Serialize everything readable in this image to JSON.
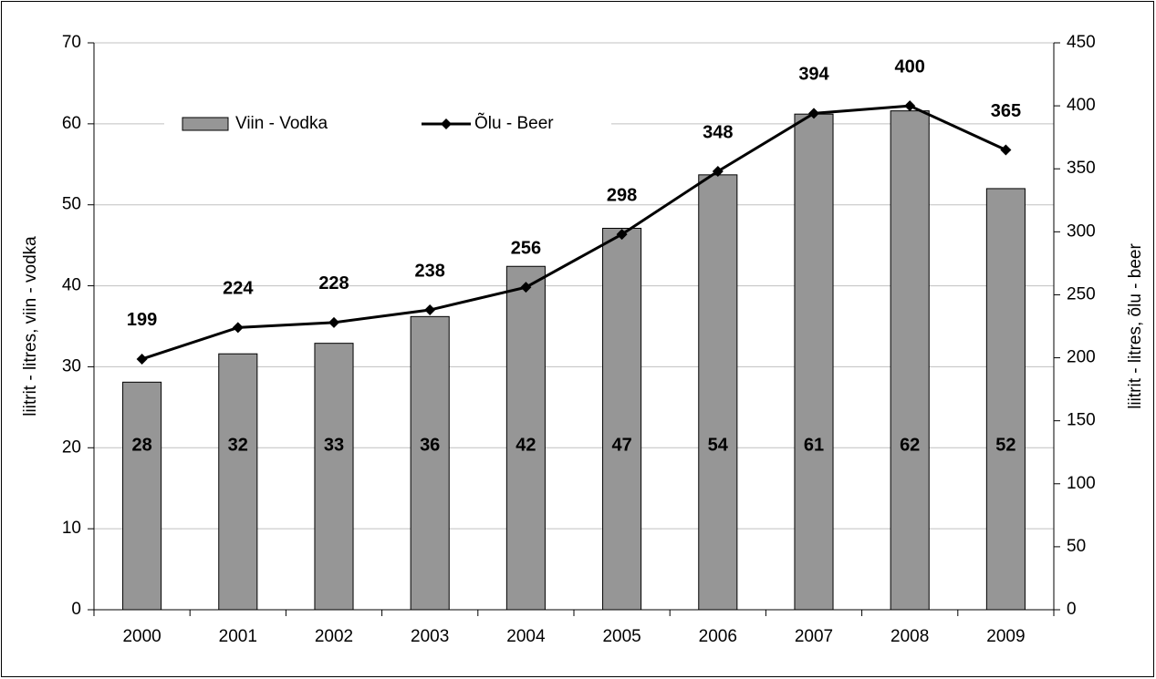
{
  "chart_data": {
    "type": "bar_line",
    "categories": [
      "2000",
      "2001",
      "2002",
      "2003",
      "2004",
      "2005",
      "2006",
      "2007",
      "2008",
      "2009"
    ],
    "series": [
      {
        "name": "Viin - Vodka",
        "type": "bar",
        "color": "#969696",
        "axis": "y",
        "values": [
          28.1,
          31.6,
          32.9,
          36.2,
          42.4,
          47.1,
          53.7,
          61.2,
          61.6,
          52.0
        ],
        "value_labels": [
          "28",
          "32",
          "33",
          "36",
          "42",
          "47",
          "54",
          "61",
          "62",
          "52"
        ]
      },
      {
        "name": "Õlu - Beer",
        "type": "line",
        "color": "#000000",
        "axis": "y2",
        "values": [
          199,
          224,
          228,
          238,
          256,
          298,
          348,
          394,
          400,
          365
        ]
      }
    ],
    "y_label": "liitrit - litres, viin - vodka",
    "y2_label": "liitrit - litres, õlu - beer",
    "ylim": [
      0,
      70
    ],
    "yticks": [
      0,
      10,
      20,
      30,
      40,
      50,
      60,
      70
    ],
    "y2lim": [
      0,
      450
    ],
    "y2ticks": [
      0,
      50,
      100,
      150,
      200,
      250,
      300,
      350,
      400,
      450
    ],
    "grid": true,
    "legend": "top"
  }
}
